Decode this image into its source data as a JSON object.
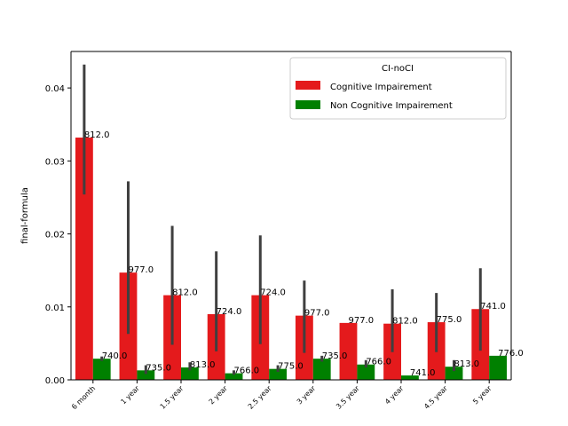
{
  "chart_data": {
    "type": "bar",
    "title": "",
    "xlabel": "",
    "ylabel": "final-formula",
    "ylim": [
      0,
      0.045
    ],
    "yticks": [
      "0.00",
      "0.01",
      "0.02",
      "0.03",
      "0.04"
    ],
    "ytick_values": [
      0,
      0.01,
      0.02,
      0.03,
      0.04
    ],
    "grid": false,
    "legend": {
      "title": "CI-noCI",
      "placement": "top-right"
    },
    "categories": [
      "6 month",
      "1 year",
      "1.5 year",
      "2 year",
      "2.5 year",
      "3 year",
      "3.5 year",
      "4 year",
      "4.5 year",
      "5 year"
    ],
    "series": [
      {
        "name": "Cognitive Impairement",
        "color": "#e41a1c",
        "values": [
          0.0332,
          0.0147,
          0.0116,
          0.009,
          0.0116,
          0.0088,
          0.0078,
          0.0077,
          0.0079,
          0.0097
        ],
        "err_low": [
          0.0254,
          0.0063,
          0.0048,
          0.0039,
          0.0049,
          0.0037,
          0.0078,
          0.0038,
          0.0038,
          0.004
        ],
        "err_high": [
          0.0432,
          0.0272,
          0.0211,
          0.0176,
          0.0198,
          0.0136,
          0.0078,
          0.0124,
          0.0119,
          0.0153
        ],
        "labels": [
          "812.0",
          "977.0",
          "812.0",
          "724.0",
          "724.0",
          "977.0",
          "977.0",
          "812.0",
          "775.0",
          "741.0"
        ]
      },
      {
        "name": "Non Cognitive Impairement",
        "color": "#008000",
        "values": [
          0.0029,
          0.0013,
          0.0017,
          0.0009,
          0.0015,
          0.0029,
          0.0021,
          0.0006,
          0.0018,
          0.0033
        ],
        "err_low": [
          0.0026,
          0.0008,
          0.0013,
          0.0007,
          0.0011,
          0.0025,
          0.0017,
          0.0006,
          0.0012,
          0.0033
        ],
        "err_high": [
          0.0032,
          0.002,
          0.0024,
          0.0013,
          0.002,
          0.0033,
          0.0027,
          0.0006,
          0.0027,
          0.0033
        ],
        "labels": [
          "740.0",
          "735.0",
          "813.0",
          "766.0",
          "775.0",
          "735.0",
          "766.0",
          "741.0",
          "813.0",
          "776.0"
        ]
      }
    ]
  }
}
